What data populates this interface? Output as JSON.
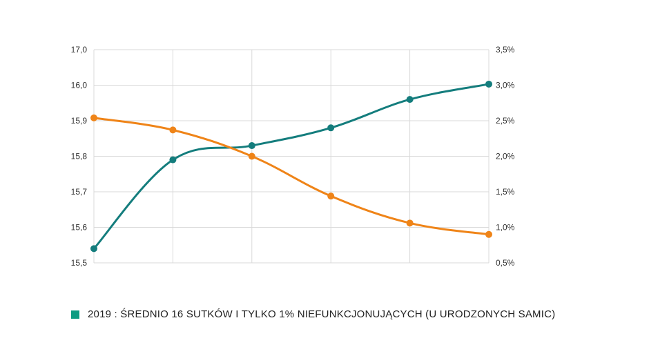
{
  "chart_data": {
    "type": "line",
    "x": [
      1,
      2,
      3,
      4,
      5,
      6
    ],
    "series": [
      {
        "axis": "left",
        "color": "#147d7d",
        "values": [
          15.54,
          15.79,
          15.83,
          15.88,
          15.96,
          16.03
        ]
      },
      {
        "axis": "right",
        "color": "#ef8418",
        "values": [
          2.54,
          2.37,
          2.0,
          1.44,
          1.06,
          0.9
        ]
      }
    ],
    "left_axis": {
      "ylim": [
        15.5,
        17.0
      ],
      "ticks": [
        15.5,
        15.6,
        15.7,
        15.8,
        15.9,
        16.0,
        17.0
      ],
      "tick_labels": [
        "15,5",
        "15,6",
        "15,7",
        "15,8",
        "15,9",
        "16,0",
        "17,0"
      ]
    },
    "right_axis": {
      "ylim": [
        0.5,
        3.5
      ],
      "tick_labels": [
        "0,5%",
        "1,0%",
        "1,5%",
        "2,0%",
        "2,5%",
        "3,0%",
        "3,5%"
      ]
    },
    "grid": true,
    "curve": "smooth",
    "legend": {
      "position": "bottom-left",
      "color": "#0e9c82",
      "label": "2019 : ŚREDNIO 16 SUTKÓW I TYLKO 1% NIEFUNKCJONUJĄCYCH (U URODZONYCH SAMIC)"
    },
    "grid_color": "#d9d9d9"
  }
}
